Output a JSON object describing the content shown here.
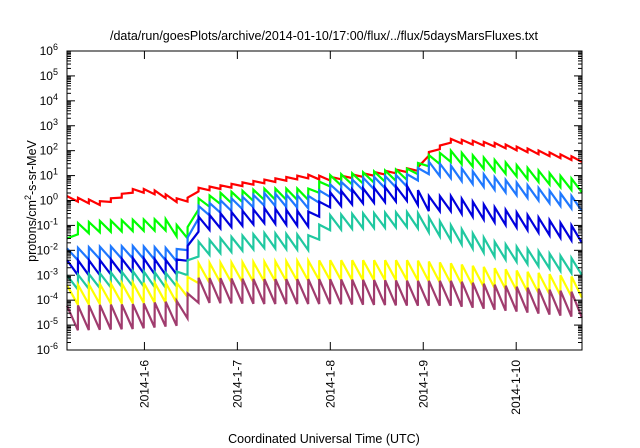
{
  "chart_data": {
    "type": "line",
    "title": "/data/run/goesPlots/archive/2014-01-10/17:00/flux/../flux/5daysMarsFluxes.txt",
    "xlabel": "Coordinated Universal Time (UTC)",
    "ylabel": {
      "prefix": "protons/cm",
      "sup": "2",
      "suffix": "-s-sr-MeV"
    },
    "x_start": "2014-01-05T04:00Z",
    "x_end": "2014-01-10T17:00Z",
    "xlim_days": [
      5.167,
      10.708
    ],
    "x_ticks": [
      {
        "day": 6,
        "label": "2014-1-6"
      },
      {
        "day": 7,
        "label": "2014-1-7"
      },
      {
        "day": 8,
        "label": "2014-1-8"
      },
      {
        "day": 9,
        "label": "2014-1-9"
      },
      {
        "day": 10,
        "label": "2014-1-10"
      }
    ],
    "y_scale": "log",
    "ylim": [
      1e-06,
      1000000.0
    ],
    "y_ticks": [
      {
        "base": "10",
        "exp": "6"
      },
      {
        "base": "10",
        "exp": "5"
      },
      {
        "base": "10",
        "exp": "4"
      },
      {
        "base": "10",
        "exp": "3"
      },
      {
        "base": "10",
        "exp": "2"
      },
      {
        "base": "10",
        "exp": "1"
      },
      {
        "base": "10",
        "exp": "0"
      },
      {
        "base": "10",
        "exp": "-1"
      },
      {
        "base": "10",
        "exp": "-2"
      },
      {
        "base": "10",
        "exp": "-3"
      },
      {
        "base": "10",
        "exp": "-4"
      },
      {
        "base": "10",
        "exp": "-5"
      },
      {
        "base": "10",
        "exp": "-6"
      }
    ],
    "grid": false,
    "legend": "none",
    "sawtooth_period_days": 0.118,
    "series": [
      {
        "color": "#ff0000",
        "peak": [
          [
            5.167,
            1.5
          ],
          [
            5.55,
            0.9
          ],
          [
            5.75,
            1.8
          ],
          [
            5.9,
            3.2
          ],
          [
            6.1,
            2.6
          ],
          [
            6.45,
            0.9
          ],
          [
            6.5,
            3
          ],
          [
            6.8,
            4
          ],
          [
            7.3,
            7
          ],
          [
            7.75,
            11
          ],
          [
            8.0,
            9
          ],
          [
            8.4,
            13
          ],
          [
            8.95,
            22
          ],
          [
            9.0,
            65
          ],
          [
            9.3,
            300
          ],
          [
            9.8,
            200
          ],
          [
            10.708,
            50
          ]
        ],
        "amp": 0.15
      },
      {
        "color": "#00ff00",
        "peak": [
          [
            5.167,
            0.03
          ],
          [
            5.25,
            0.12
          ],
          [
            5.5,
            0.15
          ],
          [
            5.9,
            0.17
          ],
          [
            6.3,
            0.18
          ],
          [
            6.45,
            0.03
          ],
          [
            6.5,
            1.0
          ],
          [
            6.8,
            2.0
          ],
          [
            7.3,
            3
          ],
          [
            7.8,
            3
          ],
          [
            7.95,
            10
          ],
          [
            8.3,
            13
          ],
          [
            8.9,
            20
          ],
          [
            9.0,
            60
          ],
          [
            9.3,
            100
          ],
          [
            9.8,
            40
          ],
          [
            10.708,
            6
          ]
        ],
        "amp": 0.45
      },
      {
        "color": "#1f78ff",
        "peak": [
          [
            5.167,
            0.012
          ],
          [
            5.5,
            0.014
          ],
          [
            5.9,
            0.015
          ],
          [
            6.3,
            0.012
          ],
          [
            6.45,
            0.01
          ],
          [
            6.5,
            0.5
          ],
          [
            6.8,
            1.0
          ],
          [
            7.3,
            2
          ],
          [
            7.8,
            1.5
          ],
          [
            7.95,
            4
          ],
          [
            8.3,
            8
          ],
          [
            8.9,
            12
          ],
          [
            9.0,
            40
          ],
          [
            9.3,
            25
          ],
          [
            9.8,
            8
          ],
          [
            10.708,
            1.2
          ]
        ],
        "amp": 0.5
      },
      {
        "color": "#0000dd",
        "peak": [
          [
            5.167,
            0.004
          ],
          [
            5.5,
            0.004
          ],
          [
            5.9,
            0.005
          ],
          [
            6.3,
            0.004
          ],
          [
            6.45,
            0.005
          ],
          [
            6.5,
            0.2
          ],
          [
            6.8,
            0.3
          ],
          [
            7.3,
            0.5
          ],
          [
            7.8,
            0.35
          ],
          [
            7.95,
            2
          ],
          [
            8.3,
            3
          ],
          [
            8.9,
            4
          ],
          [
            9.0,
            1.5
          ],
          [
            9.3,
            1.5
          ],
          [
            9.8,
            0.5
          ],
          [
            10.708,
            0.08
          ]
        ],
        "amp": 0.6
      },
      {
        "color": "#20c8a0",
        "peak": [
          [
            5.167,
            0.001
          ],
          [
            5.5,
            0.0012
          ],
          [
            5.9,
            0.0015
          ],
          [
            6.3,
            0.0012
          ],
          [
            6.45,
            0.002
          ],
          [
            6.5,
            0.02
          ],
          [
            6.8,
            0.03
          ],
          [
            7.3,
            0.05
          ],
          [
            7.8,
            0.04
          ],
          [
            7.95,
            0.25
          ],
          [
            8.3,
            0.3
          ],
          [
            8.9,
            0.35
          ],
          [
            9.3,
            0.1
          ],
          [
            9.8,
            0.02
          ],
          [
            10.708,
            0.004
          ]
        ],
        "amp": 0.6
      },
      {
        "color": "#ffff00",
        "peak": [
          [
            5.167,
            0.0004
          ],
          [
            5.9,
            0.0005
          ],
          [
            6.45,
            0.0005
          ],
          [
            6.5,
            0.003
          ],
          [
            7.3,
            0.0035
          ],
          [
            7.95,
            0.004
          ],
          [
            8.9,
            0.004
          ],
          [
            9.3,
            0.003
          ],
          [
            10.708,
            0.0008
          ]
        ],
        "amp": 0.8
      },
      {
        "color": "#a03c6e",
        "peak": [
          [
            5.167,
            6e-05
          ],
          [
            5.9,
            7e-05
          ],
          [
            6.45,
            0.0001
          ],
          [
            6.5,
            0.0008
          ],
          [
            7.3,
            0.0007
          ],
          [
            7.95,
            0.0007
          ],
          [
            8.9,
            0.0006
          ],
          [
            9.3,
            0.0006
          ],
          [
            10.708,
            0.0002
          ]
        ],
        "amp": 1.0
      }
    ]
  }
}
